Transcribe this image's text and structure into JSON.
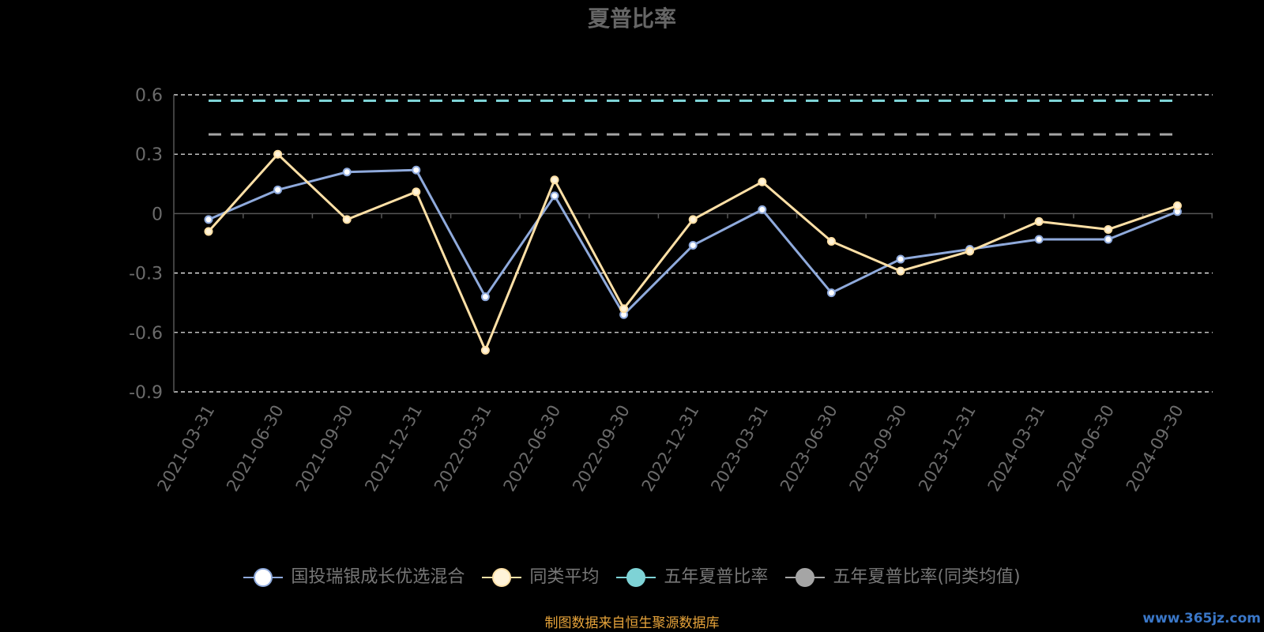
{
  "chart_data": {
    "type": "line",
    "title": "夏普比率",
    "categories": [
      "2021-03-31",
      "2021-06-30",
      "2021-09-30",
      "2021-12-31",
      "2022-03-31",
      "2022-06-30",
      "2022-09-30",
      "2022-12-31",
      "2023-03-31",
      "2023-06-30",
      "2023-09-30",
      "2023-12-31",
      "2024-03-31",
      "2024-06-30",
      "2024-09-30"
    ],
    "ylim": [
      -0.9,
      0.6
    ],
    "yticks": [
      "0.6",
      "0.3",
      "0",
      "-0.3",
      "-0.6",
      "-0.9"
    ],
    "ytick_values": [
      0.6,
      0.3,
      0,
      -0.3,
      -0.6,
      -0.9
    ],
    "grid": true,
    "legend_position": "bottom",
    "series": [
      {
        "name": "国投瑞银成长优选混合",
        "type": "line",
        "color": "#8FAADC",
        "marker_fill": "#FFFFFF",
        "values": [
          -0.03,
          0.12,
          0.21,
          0.22,
          -0.42,
          0.09,
          -0.51,
          -0.16,
          0.02,
          -0.4,
          -0.23,
          -0.18,
          -0.13,
          -0.13,
          0.01
        ]
      },
      {
        "name": "同类平均",
        "type": "line",
        "color": "#FFE0A6",
        "marker_fill": "#FFF3D9",
        "values": [
          -0.09,
          0.3,
          -0.03,
          0.11,
          -0.69,
          0.17,
          -0.48,
          -0.03,
          0.16,
          -0.14,
          -0.29,
          -0.19,
          -0.04,
          -0.08,
          0.04
        ]
      },
      {
        "name": "五年夏普比率",
        "type": "dashed",
        "color": "#7ED3D6",
        "marker_fill": "#7ED3D6",
        "value": 0.57
      },
      {
        "name": "五年夏普比率(同类均值)",
        "type": "dashed",
        "color": "#A5A5A5",
        "marker_fill": "#A5A5A5",
        "value": 0.4
      }
    ]
  },
  "source_note": "制图数据来自恒生聚源数据库",
  "watermark": "www.365jz.com"
}
